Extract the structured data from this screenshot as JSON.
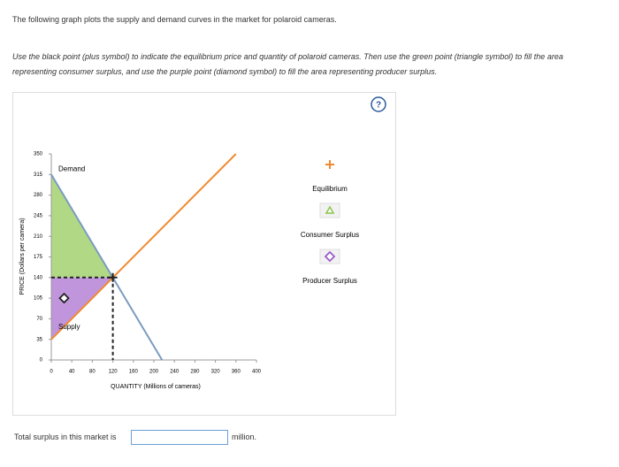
{
  "header": {
    "text": "The following graph plots the supply and demand curves in the market for polaroid cameras."
  },
  "instructions": {
    "text": "Use the black point (plus symbol) to indicate the equilibrium price and quantity of polaroid cameras. Then use the green point (triangle symbol) to fill the area representing consumer surplus, and use the purple point (diamond symbol) to fill the area representing producer surplus."
  },
  "help": "?",
  "chart_data": {
    "type": "line",
    "xlabel": "QUANTITY (Millions of cameras)",
    "ylabel": "PRICE (Dollars per camera)",
    "xlim": [
      0,
      400
    ],
    "xticks": [
      0,
      40,
      80,
      120,
      160,
      200,
      240,
      280,
      320,
      360,
      400
    ],
    "ylim": [
      0,
      350
    ],
    "yticks": [
      0,
      35,
      70,
      105,
      140,
      175,
      210,
      245,
      280,
      315,
      350
    ],
    "series": [
      {
        "name": "Demand",
        "color": "#7b9cc0",
        "x": [
          0,
          120,
          216
        ],
        "values": [
          315,
          140,
          0
        ]
      },
      {
        "name": "Supply",
        "color": "#f08a30",
        "x": [
          0,
          120,
          360
        ],
        "values": [
          35,
          140,
          350
        ]
      }
    ],
    "areas": [
      {
        "color": "#a8d477",
        "x": [
          0,
          0,
          120
        ],
        "values": [
          315,
          140,
          140
        ]
      },
      {
        "color": "#b98ad8",
        "x": [
          0,
          0,
          120
        ],
        "values": [
          140,
          35,
          140
        ]
      }
    ],
    "points": [
      {
        "marker": "plus",
        "color": "#222222",
        "x": [
          120
        ],
        "values": [
          140
        ]
      },
      {
        "marker": "diamond",
        "color": "#222222",
        "x": [
          25
        ],
        "values": [
          105
        ]
      }
    ],
    "legend": [
      {
        "name": "Equilibrium",
        "marker": "plus",
        "color": "#f08a30"
      },
      {
        "name": "Consumer Surplus",
        "marker": "triangle",
        "color": "#8bc34a"
      },
      {
        "name": "Producer Surplus",
        "marker": "diamond",
        "color": "#9c5ccc"
      }
    ]
  },
  "answer": {
    "prompt": "Total surplus in this market is",
    "unit": "million."
  }
}
